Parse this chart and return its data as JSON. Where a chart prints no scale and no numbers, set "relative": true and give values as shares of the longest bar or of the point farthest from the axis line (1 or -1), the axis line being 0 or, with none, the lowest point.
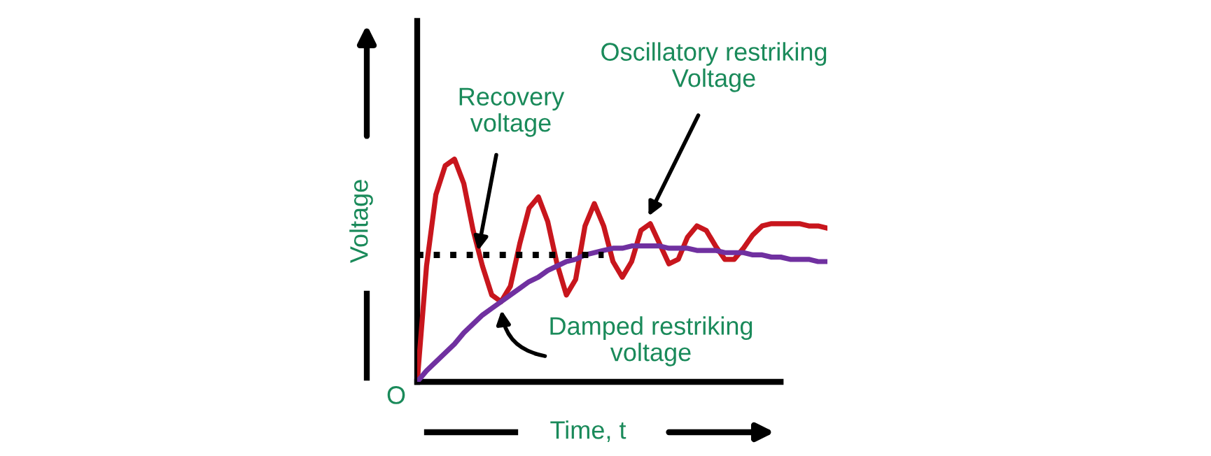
{
  "chart_data": {
    "type": "line",
    "relative": true,
    "xlabel": "Time, t",
    "ylabel": "Voltage",
    "grid": false,
    "marker": "none",
    "categories": [
      null,
      null,
      null,
      null,
      null,
      null,
      null,
      null,
      null,
      null,
      null,
      null,
      null,
      null,
      null,
      null,
      null,
      null,
      null,
      null,
      null,
      null,
      null,
      null,
      null,
      null,
      null,
      null,
      null,
      null,
      null,
      null,
      null,
      null,
      null,
      null,
      null,
      null,
      null,
      null,
      null,
      null,
      null,
      null,
      null
    ],
    "series": [
      {
        "color": "#c8161d",
        "line_style": "solid",
        "values": [
          0.0,
          0.52,
          0.84,
          0.97,
          1.0,
          0.89,
          0.68,
          0.52,
          0.39,
          0.36,
          0.43,
          0.62,
          0.78,
          0.83,
          0.72,
          0.53,
          0.39,
          0.46,
          0.7,
          0.8,
          0.7,
          0.54,
          0.47,
          0.54,
          0.68,
          0.71,
          0.62,
          0.53,
          0.55,
          0.65,
          0.7,
          0.68,
          0.61,
          0.55,
          0.55,
          0.6,
          0.66,
          0.7,
          0.71,
          0.71,
          0.71,
          0.71,
          0.7,
          0.7,
          0.69
        ]
      },
      {
        "color": "#7030a0",
        "line_style": "solid",
        "values": [
          0.0,
          0.05,
          0.09,
          0.13,
          0.17,
          0.22,
          0.26,
          0.3,
          0.33,
          0.36,
          0.39,
          0.42,
          0.45,
          0.47,
          0.5,
          0.52,
          0.54,
          0.55,
          0.57,
          0.58,
          0.59,
          0.6,
          0.6,
          0.61,
          0.61,
          0.61,
          0.61,
          0.6,
          0.6,
          0.6,
          0.59,
          0.59,
          0.59,
          0.58,
          0.58,
          0.58,
          0.57,
          0.57,
          0.56,
          0.56,
          0.55,
          0.55,
          0.55,
          0.54,
          0.54
        ]
      },
      {
        "color": "#000000",
        "line_style": "dotted",
        "values": [
          0.57,
          0.57,
          0.57,
          0.57,
          0.57,
          0.57,
          0.57,
          0.57,
          0.57,
          0.57,
          0.57,
          0.57,
          0.57,
          0.57,
          0.57,
          0.57,
          0.57,
          0.57,
          0.57,
          0.57,
          0.57,
          null,
          null,
          null,
          null,
          null,
          null,
          null,
          null,
          null,
          null,
          null,
          null,
          null,
          null,
          null,
          null,
          null,
          null,
          null,
          null,
          null,
          null,
          null,
          null
        ]
      }
    ],
    "annotations": [
      "Recovery\nvoltage",
      "Oscillatory restriking\nVoltage",
      "Damped restriking\nvoltage",
      "O"
    ]
  }
}
